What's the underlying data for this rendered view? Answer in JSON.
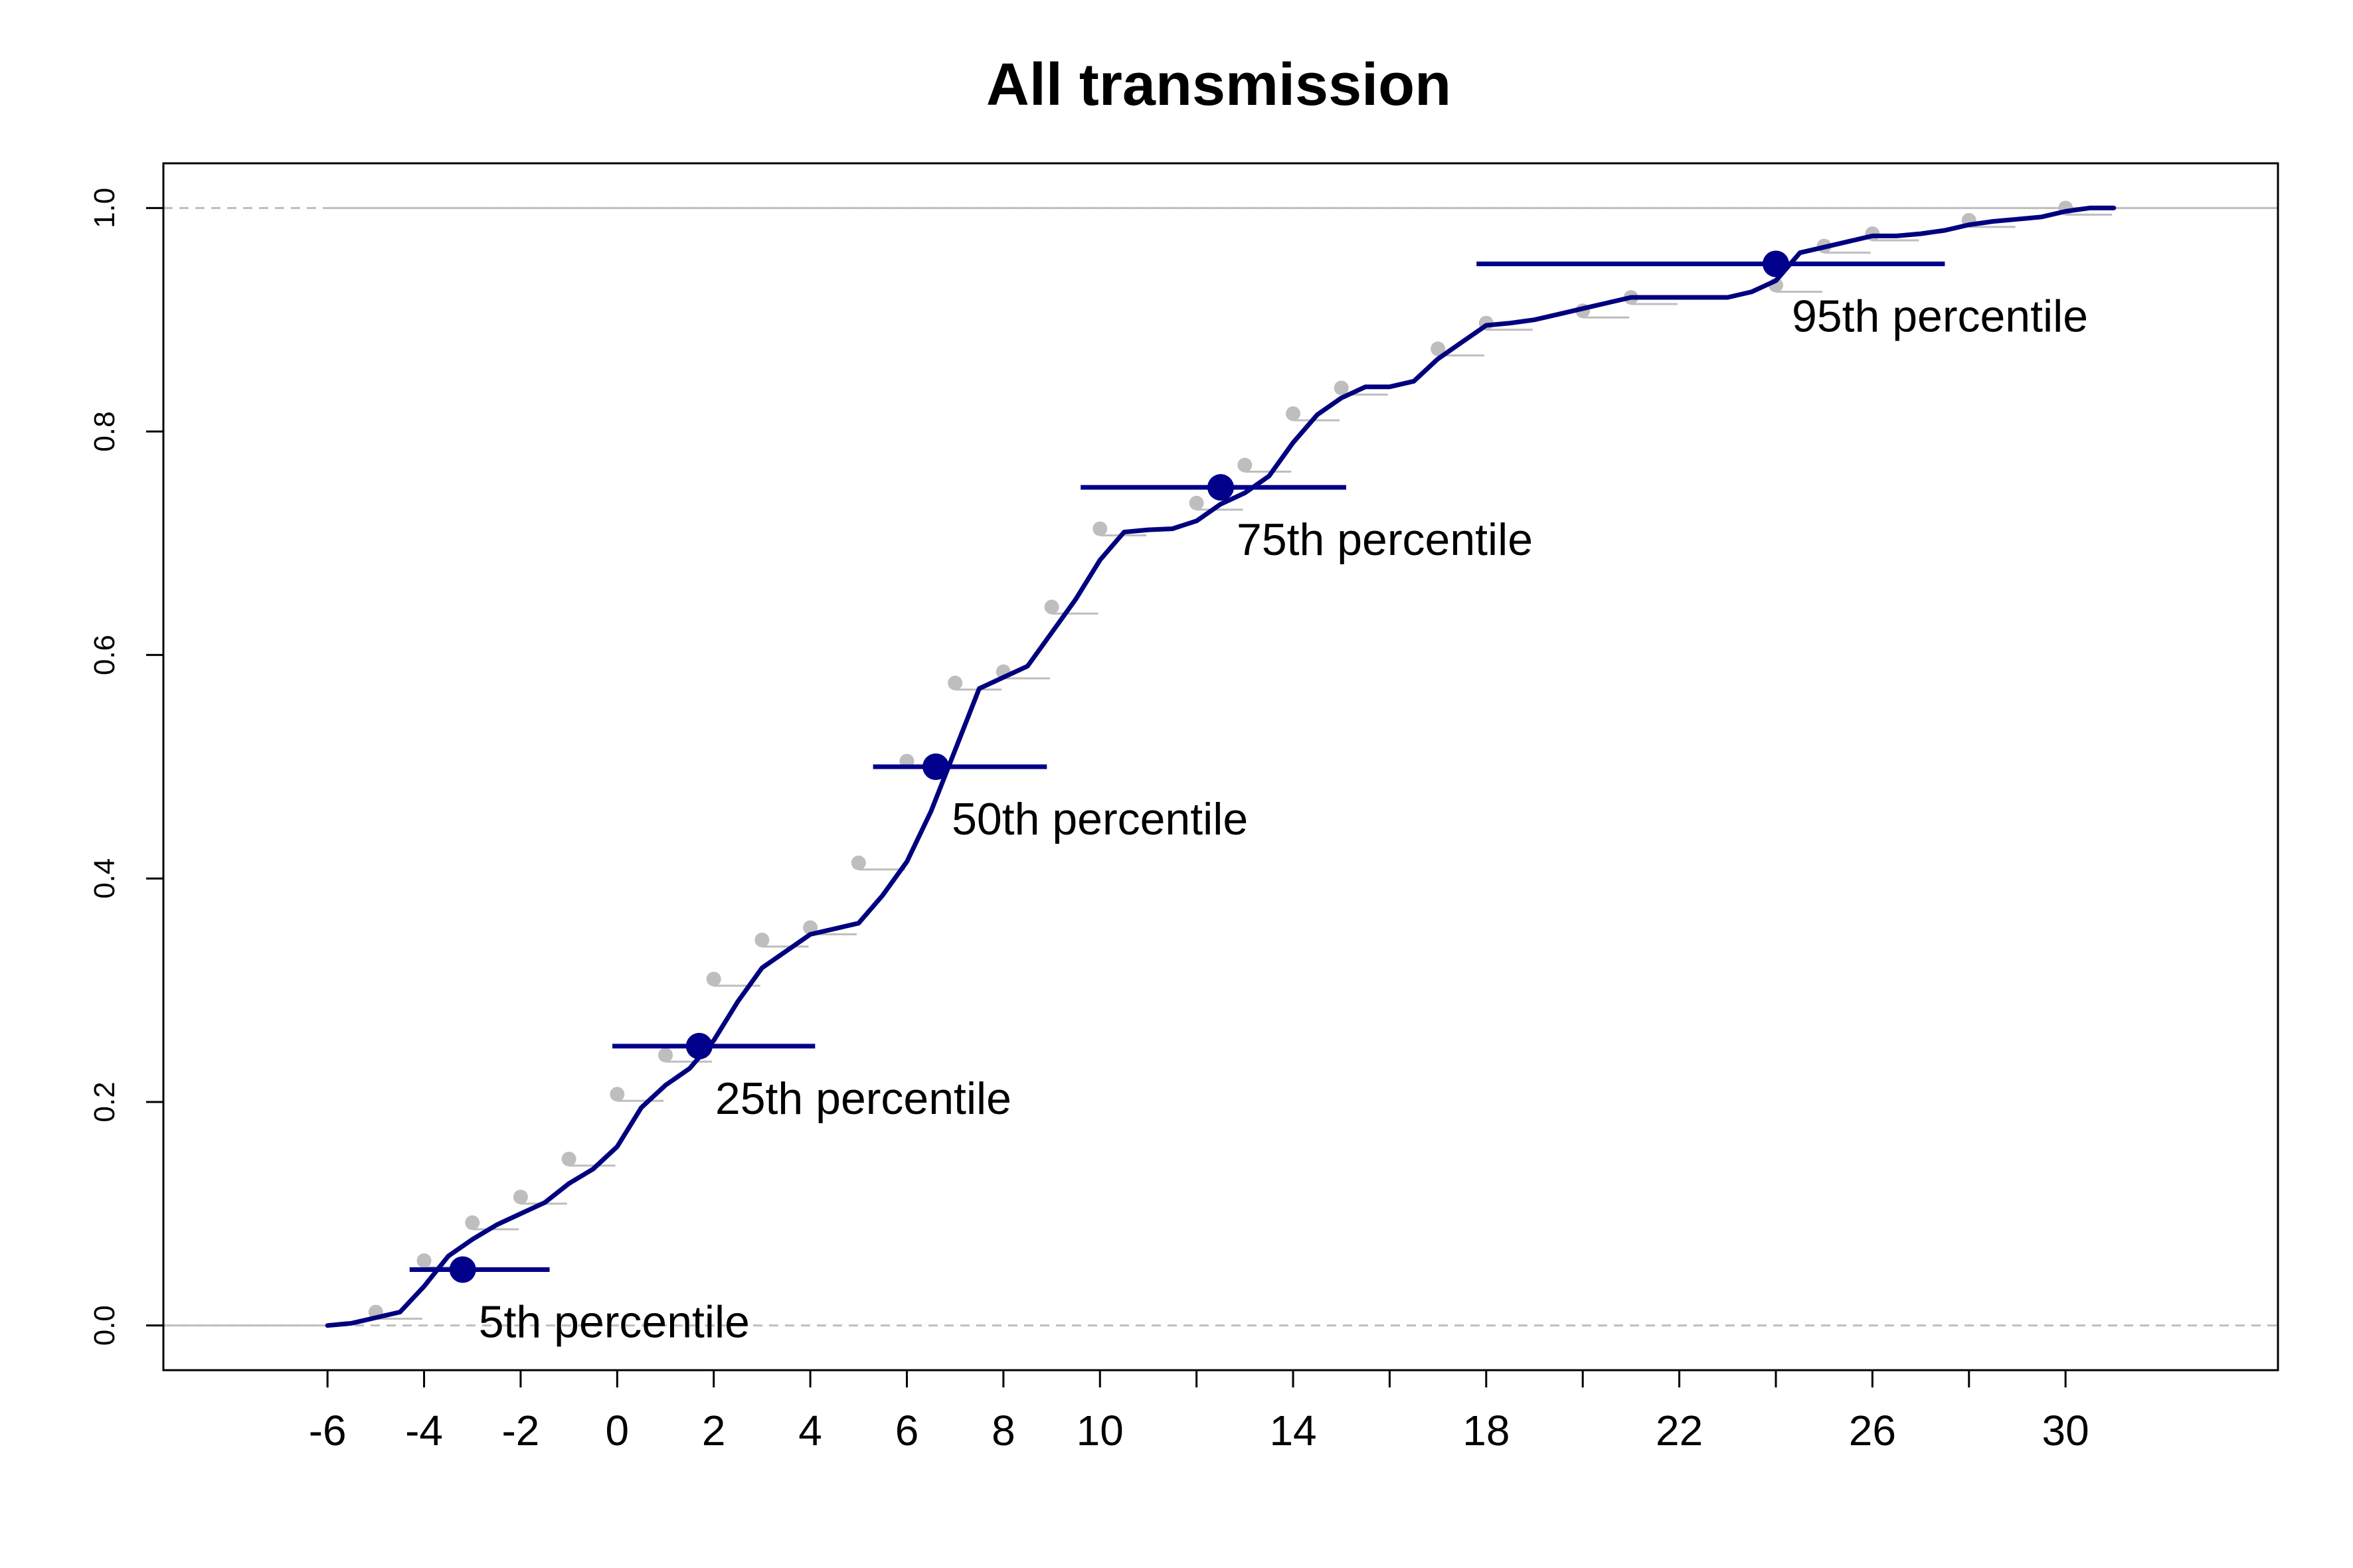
{
  "chart_data": {
    "type": "line",
    "title": "All transmission",
    "xlabel": "",
    "ylabel": "",
    "xlim": [
      -9.4,
      34.4
    ],
    "ylim": [
      -0.04,
      1.04
    ],
    "x_ticks": [
      -6,
      -4,
      -2,
      0,
      2,
      4,
      6,
      8,
      10,
      12,
      14,
      16,
      18,
      20,
      22,
      24,
      26,
      28,
      30
    ],
    "x_tick_labels": [
      "-6",
      "-4",
      "-2",
      "0",
      "2",
      "4",
      "6",
      "8",
      "10",
      "",
      "14",
      "",
      "18",
      "",
      "22",
      "",
      "26",
      "",
      "30"
    ],
    "y_ticks": [
      0.0,
      0.2,
      0.4,
      0.6,
      0.8,
      1.0
    ],
    "y_tick_labels": [
      "0.0",
      "0.2",
      "0.4",
      "0.6",
      "0.8",
      "1.0"
    ],
    "reference_lines_y": [
      0.0,
      1.0
    ],
    "colors": {
      "fitted_curve": "#00007F",
      "empirical_points": "#BEBEBE",
      "percentile_marker": "#00008B",
      "reference_line": "#BEBEBE"
    },
    "series": [
      {
        "type": "line",
        "x": [
          -6,
          -5.5,
          -5,
          -4.5,
          -4,
          -3.5,
          -3,
          -2.5,
          -2,
          -1.5,
          -1,
          -0.5,
          0,
          0.5,
          1,
          1.5,
          2,
          2.5,
          3,
          3.5,
          4,
          4.5,
          5,
          5.5,
          6,
          6.5,
          7,
          7.5,
          8,
          8.5,
          9,
          9.5,
          10,
          10.5,
          11,
          11.5,
          12,
          12.5,
          13,
          13.5,
          14,
          14.5,
          15,
          15.5,
          16,
          16.5,
          17,
          17.5,
          18,
          18.5,
          19,
          19.5,
          20,
          20.5,
          21,
          21.5,
          22,
          22.5,
          23,
          23.5,
          24,
          24.5,
          25,
          25.5,
          26,
          26.5,
          27,
          27.5,
          28,
          28.5,
          29,
          29.5,
          30,
          30.5,
          31
        ],
        "values": [
          0.0,
          0.002,
          0.007,
          0.012,
          0.035,
          0.062,
          0.077,
          0.09,
          0.1,
          0.11,
          0.127,
          0.14,
          0.16,
          0.195,
          0.215,
          0.23,
          0.255,
          0.29,
          0.32,
          0.335,
          0.35,
          0.355,
          0.36,
          0.385,
          0.415,
          0.46,
          0.515,
          0.57,
          0.58,
          0.59,
          0.62,
          0.65,
          0.685,
          0.71,
          0.712,
          0.713,
          0.72,
          0.735,
          0.745,
          0.76,
          0.79,
          0.815,
          0.83,
          0.84,
          0.84,
          0.845,
          0.865,
          0.88,
          0.895,
          0.897,
          0.9,
          0.905,
          0.91,
          0.915,
          0.92,
          0.92,
          0.92,
          0.92,
          0.92,
          0.925,
          0.935,
          0.96,
          0.965,
          0.97,
          0.975,
          0.975,
          0.977,
          0.98,
          0.985,
          0.988,
          0.99,
          0.992,
          0.997,
          1.0,
          1.0
        ]
      },
      {
        "type": "scatter",
        "x": [
          -5,
          -4,
          -3,
          -2,
          -1,
          0,
          1,
          2,
          3,
          4,
          5,
          6,
          7,
          8,
          9,
          10,
          12,
          13,
          14,
          15,
          17,
          18,
          20,
          21,
          24,
          25,
          26,
          28,
          30
        ],
        "values": [
          0.012,
          0.058,
          0.092,
          0.115,
          0.149,
          0.207,
          0.242,
          0.31,
          0.345,
          0.356,
          0.414,
          0.505,
          0.575,
          0.585,
          0.643,
          0.713,
          0.736,
          0.77,
          0.816,
          0.839,
          0.874,
          0.897,
          0.908,
          0.92,
          0.931,
          0.966,
          0.977,
          0.989,
          1.0
        ]
      }
    ],
    "percentiles": [
      {
        "label": "5th percentile",
        "x": -3.2,
        "y": 0.05,
        "xmin": -4.3,
        "xmax": -1.4
      },
      {
        "label": "25th percentile",
        "x": 1.7,
        "y": 0.25,
        "xmin": -0.1,
        "xmax": 4.1
      },
      {
        "label": "50th percentile",
        "x": 6.6,
        "y": 0.5,
        "xmin": 5.3,
        "xmax": 8.9
      },
      {
        "label": "75th percentile",
        "x": 12.5,
        "y": 0.75,
        "xmin": 9.6,
        "xmax": 15.1
      },
      {
        "label": "95th percentile",
        "x": 24.0,
        "y": 0.95,
        "xmin": 17.8,
        "xmax": 27.5
      }
    ]
  }
}
